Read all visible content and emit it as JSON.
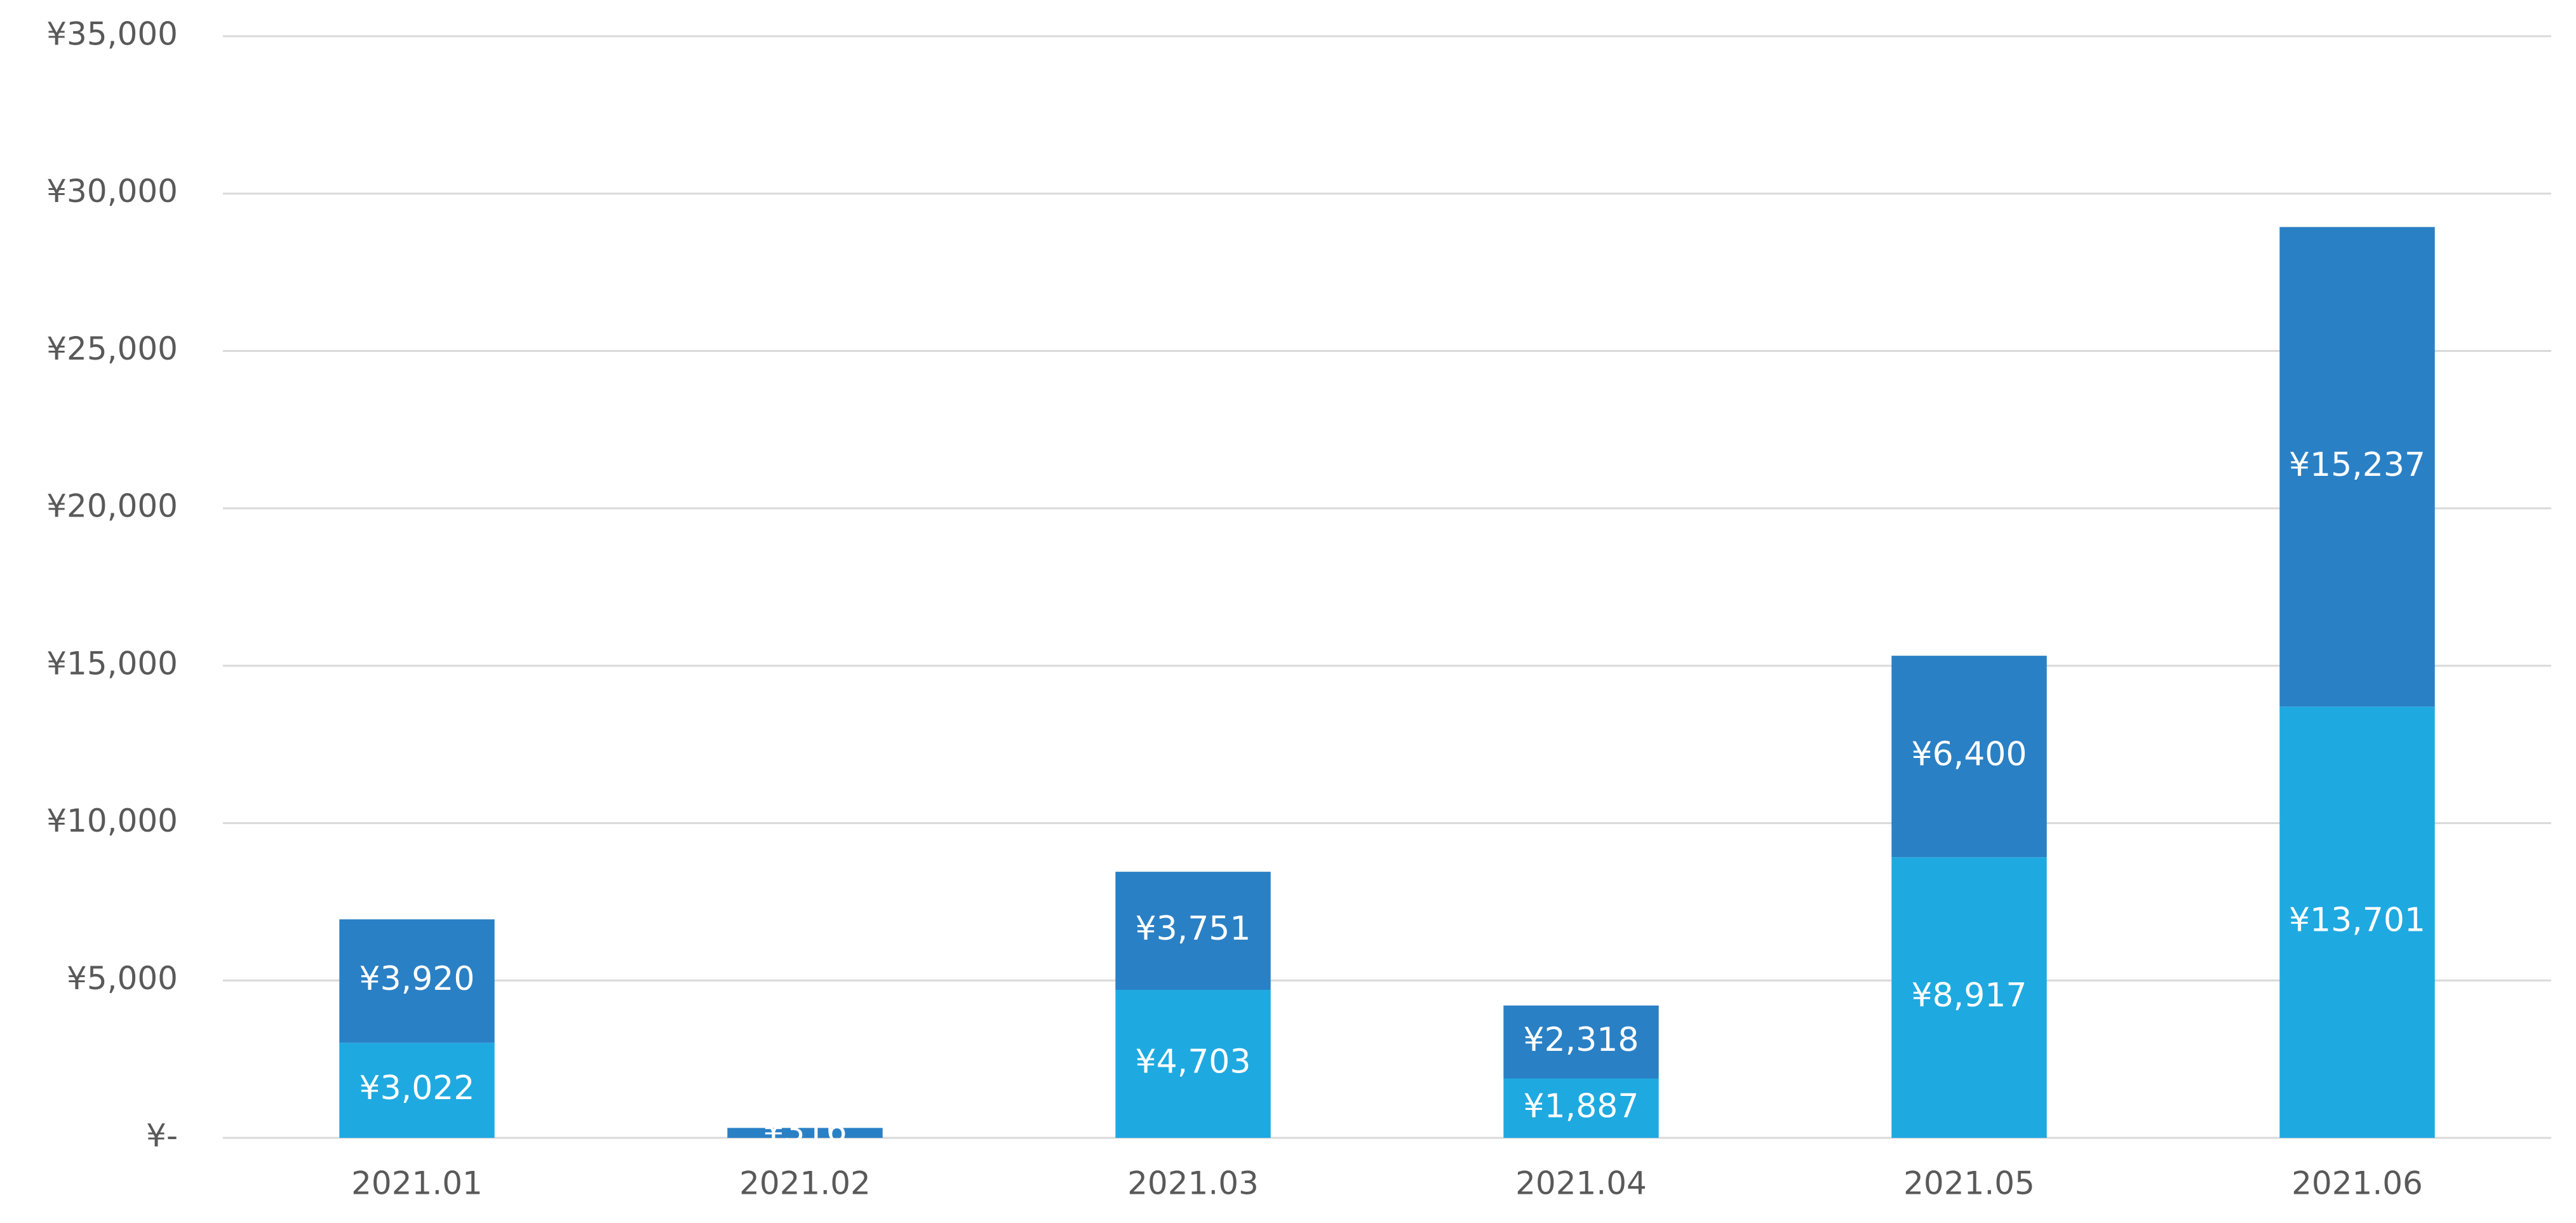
{
  "chart_data": {
    "type": "stacked-bar",
    "categories": [
      "2021.01",
      "2021.02",
      "2021.03",
      "2021.04",
      "2021.05",
      "2021.06"
    ],
    "series": [
      {
        "color": "#1fa9e1",
        "values": [
          3022,
          0,
          4703,
          1887,
          8917,
          13701
        ],
        "value_labels": [
          "¥3,022",
          null,
          "¥4,703",
          "¥1,887",
          "¥8,917",
          "¥13,701"
        ]
      },
      {
        "color": "#2a80c5",
        "values": [
          3920,
          316,
          3751,
          2318,
          6400,
          15237
        ],
        "value_labels": [
          "¥3,920",
          "¥316",
          "¥3,751",
          "¥2,318",
          "¥6,400",
          "¥15,237"
        ]
      }
    ],
    "ylim": [
      0,
      35000
    ],
    "yticks": [
      {
        "value": 0,
        "label": "¥-"
      },
      {
        "value": 5000,
        "label": "¥5,000"
      },
      {
        "value": 10000,
        "label": "¥10,000"
      },
      {
        "value": 15000,
        "label": "¥15,000"
      },
      {
        "value": 20000,
        "label": "¥20,000"
      },
      {
        "value": 25000,
        "label": "¥25,000"
      },
      {
        "value": 30000,
        "label": "¥30,000"
      },
      {
        "value": 35000,
        "label": "¥35,000"
      }
    ],
    "grid": true
  }
}
